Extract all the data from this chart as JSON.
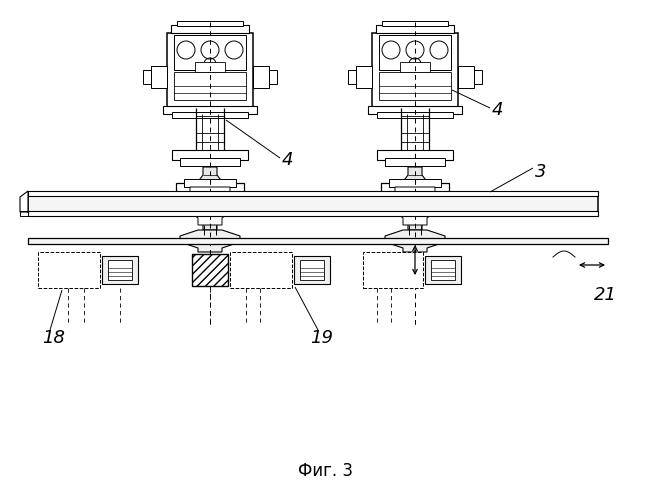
{
  "bg_color": "#ffffff",
  "line_color": "#000000",
  "title": "Фиг. 3",
  "LCX": 210,
  "RCX": 415,
  "fig_width": 6.52,
  "fig_height": 5.0,
  "dpi": 100
}
